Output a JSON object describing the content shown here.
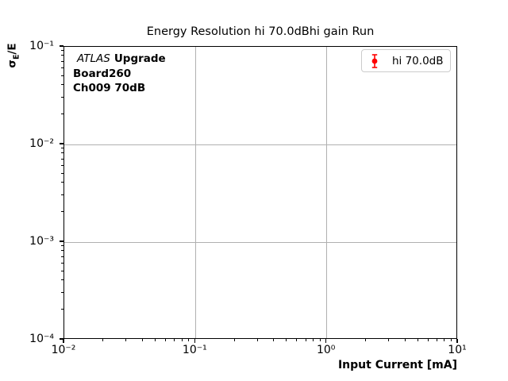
{
  "chart_data": {
    "type": "scatter",
    "title": "Energy Resolution hi 70.0dBhi gain Run",
    "xlabel": "Input Current [mA]",
    "ylabel": "σE/E",
    "ylabel_parts": {
      "sigma": "σ",
      "sub": "E",
      "rest": "/E"
    },
    "xscale": "log",
    "yscale": "log",
    "xlim": [
      0.01,
      10
    ],
    "ylim": [
      0.0001,
      0.1
    ],
    "x_tick_exponents": [
      -2,
      -1,
      0,
      1
    ],
    "x_tick_labels": [
      "10⁻²",
      "10⁻¹",
      "10⁰",
      "10¹"
    ],
    "y_tick_exponents": [
      -1,
      -2,
      -3,
      -4
    ],
    "y_tick_labels": [
      "10⁻¹",
      "10⁻²",
      "10⁻³",
      "10⁻⁴"
    ],
    "grid": true,
    "series": [
      {
        "name": "hi 70.0dB",
        "color": "#ff0000",
        "marker": "circle-with-errorbar",
        "x": [],
        "y": [],
        "yerr": []
      }
    ],
    "legend": {
      "position": "upper-right",
      "entries": [
        {
          "label": "hi 70.0dB",
          "marker": "errorbar-point-icon",
          "color": "#ff0000"
        }
      ]
    },
    "annotation": {
      "line1_italic": "ATLAS",
      "line1_bold": "Upgrade",
      "line2": "Board260",
      "line3": "Ch009 70dB"
    }
  },
  "colors": {
    "grid": "#b0b0b0",
    "axes": "#000000",
    "text": "#000000",
    "legend_border": "#cccccc",
    "series": "#ff0000",
    "background": "#ffffff"
  }
}
